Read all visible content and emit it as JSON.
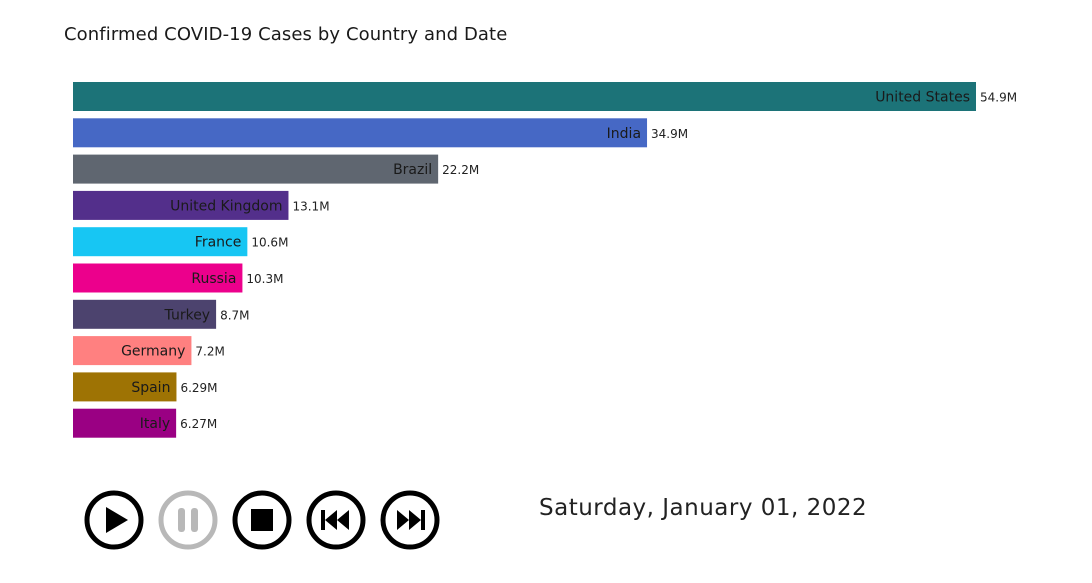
{
  "title": "Confirmed COVID-19 Cases by Country and Date",
  "date_label": "Saturday, January 01, 2022",
  "controls": {
    "play_icon": "play-icon",
    "pause_icon": "pause-icon",
    "stop_icon": "stop-icon",
    "rewind_icon": "skip-back-icon",
    "forward_icon": "skip-forward-icon"
  },
  "chart_data": {
    "type": "bar",
    "orientation": "horizontal",
    "title": "Confirmed COVID-19 Cases by Country and Date",
    "categories": [
      "United States",
      "India",
      "Brazil",
      "United Kingdom",
      "France",
      "Russia",
      "Turkey",
      "Germany",
      "Spain",
      "Italy"
    ],
    "values": [
      54.9,
      34.9,
      22.2,
      13.1,
      10.6,
      10.3,
      8.7,
      7.2,
      6.29,
      6.27
    ],
    "value_labels": [
      "54.9M",
      "34.9M",
      "22.2M",
      "13.1M",
      "10.6M",
      "10.3M",
      "8.7M",
      "7.2M",
      "6.29M",
      "6.27M"
    ],
    "colors": [
      "#1C7378",
      "#4668C5",
      "#5F6670",
      "#532F8B",
      "#17C6F3",
      "#EC008C",
      "#4C436E",
      "#FF8080",
      "#9E7304",
      "#9A0083"
    ],
    "unit": "M",
    "xlim": [
      0,
      54.9
    ],
    "grid": false,
    "legend": "none"
  }
}
